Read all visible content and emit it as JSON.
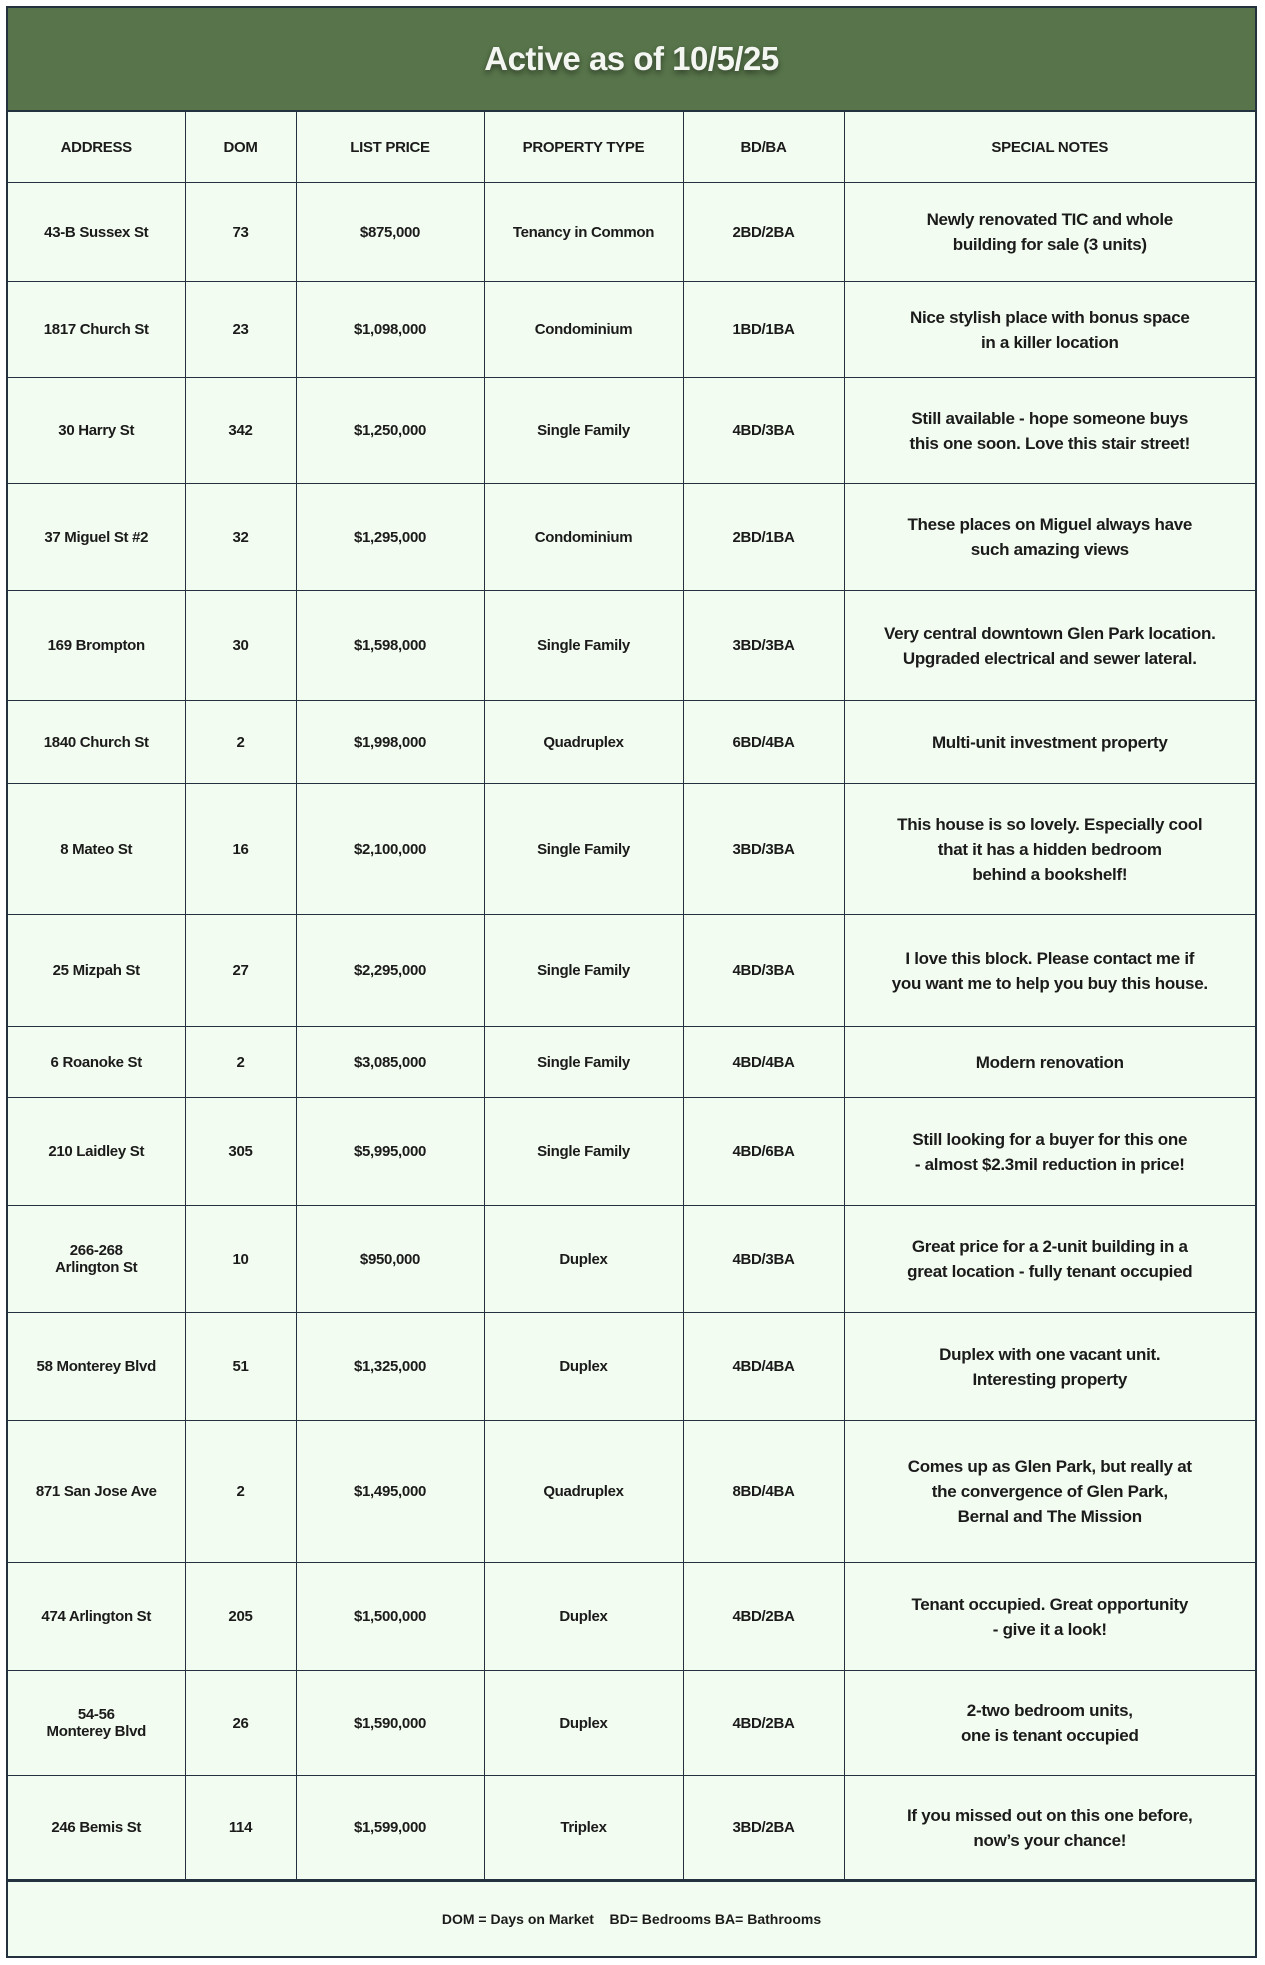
{
  "title": "Active as of 10/5/25",
  "colors": {
    "header_green": "#57744a",
    "background": "#f3fcf0",
    "border": "#24323f"
  },
  "columns": [
    "ADDRESS",
    "DOM",
    "LIST PRICE",
    "PROPERTY TYPE",
    "BD/BA",
    "SPECIAL NOTES"
  ],
  "rows": [
    {
      "address": "43-B Sussex St",
      "dom": "73",
      "price": "$875,000",
      "type": "Tenancy in Common",
      "bdba": "2BD/2BA",
      "notes": "Newly renovated TIC and whole\nbuilding for sale (3 units)"
    },
    {
      "address": "1817 Church St",
      "dom": "23",
      "price": "$1,098,000",
      "type": "Condominium",
      "bdba": "1BD/1BA",
      "notes": "Nice stylish place with bonus space\nin a killer location"
    },
    {
      "address": "30 Harry St",
      "dom": "342",
      "price": "$1,250,000",
      "type": "Single Family",
      "bdba": "4BD/3BA",
      "notes": "Still available - hope someone buys\nthis one soon. Love this stair street!"
    },
    {
      "address": "37 Miguel St #2",
      "dom": "32",
      "price": "$1,295,000",
      "type": "Condominium",
      "bdba": "2BD/1BA",
      "notes": "These places on Miguel always have\nsuch amazing views"
    },
    {
      "address": "169 Brompton",
      "dom": "30",
      "price": "$1,598,000",
      "type": "Single Family",
      "bdba": "3BD/3BA",
      "notes": "Very central downtown Glen Park location.\nUpgraded electrical and sewer lateral."
    },
    {
      "address": "1840 Church St",
      "dom": "2",
      "price": "$1,998,000",
      "type": "Quadruplex",
      "bdba": "6BD/4BA",
      "notes": "Multi-unit investment property"
    },
    {
      "address": "8 Mateo St",
      "dom": "16",
      "price": "$2,100,000",
      "type": "Single Family",
      "bdba": "3BD/3BA",
      "notes": "This house is so lovely. Especially cool\nthat it has a hidden bedroom\nbehind a bookshelf!"
    },
    {
      "address": "25 Mizpah St",
      "dom": "27",
      "price": "$2,295,000",
      "type": "Single Family",
      "bdba": "4BD/3BA",
      "notes": "I love this block. Please contact me if\nyou want me to help you buy this house."
    },
    {
      "address": "6 Roanoke St",
      "dom": "2",
      "price": "$3,085,000",
      "type": "Single Family",
      "bdba": "4BD/4BA",
      "notes": "Modern renovation"
    },
    {
      "address": "210 Laidley St",
      "dom": "305",
      "price": "$5,995,000",
      "type": "Single Family",
      "bdba": "4BD/6BA",
      "notes": "Still looking for a buyer for this one\n- almost $2.3mil reduction in price!"
    },
    {
      "address": "266-268\nArlington St",
      "dom": "10",
      "price": "$950,000",
      "type": "Duplex",
      "bdba": "4BD/3BA",
      "notes": "Great price for a 2-unit building in a\ngreat location - fully tenant occupied"
    },
    {
      "address": "58 Monterey Blvd",
      "dom": "51",
      "price": "$1,325,000",
      "type": "Duplex",
      "bdba": "4BD/4BA",
      "notes": "Duplex with one vacant unit.\nInteresting property"
    },
    {
      "address": "871 San Jose Ave",
      "dom": "2",
      "price": "$1,495,000",
      "type": "Quadruplex",
      "bdba": "8BD/4BA",
      "notes": "Comes up as Glen Park, but really at\nthe convergence of Glen Park,\nBernal and The Mission"
    },
    {
      "address": "474 Arlington St",
      "dom": "205",
      "price": "$1,500,000",
      "type": "Duplex",
      "bdba": "4BD/2BA",
      "notes": "Tenant occupied. Great opportunity\n- give it a look!"
    },
    {
      "address": "54-56\nMonterey Blvd",
      "dom": "26",
      "price": "$1,590,000",
      "type": "Duplex",
      "bdba": "4BD/2BA",
      "notes": "2-two bedroom units,\none is tenant occupied"
    },
    {
      "address": "246 Bemis St",
      "dom": "114",
      "price": "$1,599,000",
      "type": "Triplex",
      "bdba": "3BD/2BA",
      "notes": "If you missed out on this one before,\nnow’s your chance!"
    }
  ],
  "footer": "DOM = Days on Market    BD= Bedrooms BA= Bathrooms"
}
